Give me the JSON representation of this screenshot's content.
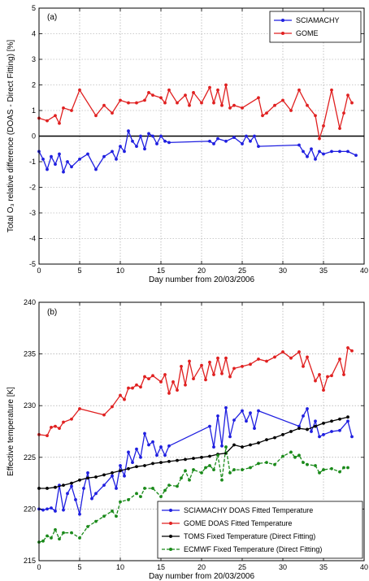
{
  "chart_data": [
    {
      "type": "line",
      "panel_label": "(a)",
      "xlabel": "Day number from 20/03/2006",
      "ylabel": "Total O₃ relative difference (DOAS - Direct Fitting) [%]",
      "xlim": [
        0,
        40
      ],
      "ylim": [
        -5,
        5
      ],
      "xticks": [
        0,
        5,
        10,
        15,
        20,
        25,
        30,
        35,
        40
      ],
      "yticks": [
        -5,
        -4,
        -3,
        -2,
        -1,
        0,
        1,
        2,
        3,
        4,
        5
      ],
      "grid": true,
      "zero_line": true,
      "legend_position": "top-right",
      "series": [
        {
          "name": "SCIAMACHY",
          "color": "#1f1fe0",
          "x": [
            0,
            0.5,
            1,
            1.5,
            2,
            2.5,
            3,
            3.5,
            4,
            5,
            6,
            7,
            8,
            9,
            9.5,
            10,
            10.5,
            11,
            11.5,
            12,
            12.5,
            13,
            13.5,
            14,
            14.5,
            15,
            15.5,
            16,
            21,
            21.5,
            22,
            23,
            24,
            25,
            25.5,
            26,
            26.5,
            27,
            32,
            32.5,
            33,
            33.5,
            34,
            34.5,
            35,
            36,
            37,
            38,
            39
          ],
          "y": [
            -0.6,
            -0.9,
            -1.3,
            -0.8,
            -1.1,
            -0.7,
            -1.4,
            -1.0,
            -1.2,
            -0.9,
            -0.7,
            -1.3,
            -0.8,
            -0.6,
            -0.9,
            -0.4,
            -0.6,
            0.2,
            -0.2,
            -0.4,
            0.0,
            -0.5,
            0.1,
            0.0,
            -0.3,
            0.0,
            -0.2,
            -0.25,
            -0.2,
            -0.3,
            -0.1,
            -0.2,
            -0.05,
            -0.3,
            0.0,
            -0.2,
            0.0,
            -0.4,
            -0.35,
            -0.6,
            -0.8,
            -0.5,
            -0.9,
            -0.6,
            -0.7,
            -0.6,
            -0.6,
            -0.6,
            -0.75
          ]
        },
        {
          "name": "GOME",
          "color": "#e02020",
          "x": [
            0,
            1,
            2,
            2.5,
            3,
            4,
            5,
            7,
            8,
            9,
            10,
            11,
            12,
            13,
            13.5,
            14,
            15,
            15.5,
            16,
            17,
            18,
            18.5,
            19,
            20,
            21,
            21.5,
            22,
            22.5,
            23,
            23.5,
            24,
            25,
            27,
            27.5,
            28,
            29,
            30,
            31,
            32,
            33,
            34,
            34.5,
            35,
            36,
            37,
            37.5,
            38,
            38.5
          ],
          "y": [
            0.7,
            0.6,
            0.8,
            0.5,
            1.1,
            1.0,
            1.8,
            0.8,
            1.2,
            0.9,
            1.4,
            1.3,
            1.3,
            1.4,
            1.7,
            1.6,
            1.5,
            1.3,
            1.8,
            1.3,
            1.6,
            1.2,
            1.7,
            1.3,
            1.9,
            1.3,
            1.8,
            1.2,
            2.0,
            1.1,
            1.2,
            1.1,
            1.5,
            0.8,
            0.9,
            1.2,
            1.4,
            1.0,
            1.8,
            1.2,
            0.8,
            -0.1,
            0.4,
            1.8,
            0.3,
            0.9,
            1.6,
            1.3
          ]
        }
      ]
    },
    {
      "type": "line",
      "panel_label": "(b)",
      "xlabel": "Day number from 20/03/2006",
      "ylabel": "Effective temperature [K]",
      "xlim": [
        0,
        40
      ],
      "ylim": [
        215,
        240
      ],
      "xticks": [
        0,
        5,
        10,
        15,
        20,
        25,
        30,
        35,
        40
      ],
      "yticks": [
        215,
        220,
        225,
        230,
        235,
        240
      ],
      "grid": true,
      "legend_position": "bottom-right",
      "series": [
        {
          "name": "SCIAMACHY DOAS Fitted Temperature",
          "color": "#1f1fe0",
          "dashed": false,
          "x": [
            0,
            0.5,
            1,
            1.5,
            2,
            2.5,
            3,
            3.5,
            4,
            4.5,
            5,
            5.5,
            6,
            6.5,
            7,
            8,
            9,
            9.5,
            10,
            10.5,
            11,
            11.5,
            12,
            12.5,
            13,
            13.5,
            14,
            14.5,
            15,
            15.5,
            16,
            21,
            21.5,
            22,
            22.5,
            23,
            23.5,
            24,
            25,
            25.5,
            26,
            26.5,
            27,
            32,
            32.5,
            33,
            33.5,
            34,
            34.5,
            35,
            36,
            37,
            38,
            38.5
          ],
          "y": [
            220.0,
            219.9,
            220.0,
            220.1,
            219.8,
            222.3,
            219.9,
            221.5,
            222.2,
            220.9,
            219.5,
            222.0,
            223.5,
            221.0,
            221.5,
            222.3,
            223.2,
            222.0,
            224.2,
            223.2,
            225.5,
            224.5,
            225.8,
            225.0,
            227.3,
            226.2,
            226.5,
            225.2,
            226.0,
            225.2,
            226.1,
            228.0,
            226.0,
            229.0,
            226.1,
            229.8,
            227.0,
            228.6,
            229.5,
            228.5,
            229.3,
            227.8,
            229.5,
            228.0,
            229.0,
            229.7,
            227.5,
            228.5,
            227.0,
            227.2,
            227.5,
            227.6,
            228.5,
            227.0
          ]
        },
        {
          "name": "GOME DOAS Fitted Temperature",
          "color": "#e02020",
          "dashed": false,
          "x": [
            0,
            1,
            1.5,
            2,
            2.5,
            3,
            4,
            5,
            8,
            9,
            10,
            10.5,
            11,
            11.5,
            12,
            12.5,
            13,
            13.5,
            14,
            15,
            15.5,
            16,
            16.5,
            17,
            17.5,
            18,
            18.5,
            19,
            20,
            20.5,
            21,
            21.5,
            22,
            22.5,
            23,
            23.5,
            24,
            25,
            26,
            27,
            28,
            29,
            30,
            31,
            32,
            32.5,
            33,
            34,
            34.5,
            35,
            35.5,
            36,
            37,
            37.5,
            38,
            38.5
          ],
          "y": [
            227.2,
            227.1,
            227.9,
            228.0,
            227.8,
            228.4,
            228.7,
            229.7,
            229.1,
            229.9,
            231.0,
            230.6,
            231.7,
            231.7,
            232.0,
            231.8,
            232.8,
            232.6,
            232.9,
            232.3,
            233.0,
            231.2,
            232.3,
            231.5,
            233.8,
            232.0,
            234.3,
            232.6,
            233.9,
            232.5,
            234.2,
            233.0,
            234.6,
            233.1,
            234.6,
            232.8,
            233.6,
            233.8,
            234.0,
            234.5,
            234.3,
            234.7,
            235.2,
            234.6,
            235.2,
            233.8,
            234.7,
            232.4,
            233.0,
            231.5,
            232.8,
            232.9,
            234.5,
            233.0,
            235.6,
            235.3
          ]
        },
        {
          "name": "TOMS Fixed Temperature (Direct Fitting)",
          "color": "#000000",
          "dashed": false,
          "x": [
            0,
            1,
            2,
            3,
            4,
            5,
            6,
            7,
            8,
            9,
            10,
            11,
            12,
            13,
            14,
            15,
            16,
            17,
            18,
            19,
            20,
            21,
            22,
            23,
            24,
            25,
            26,
            27,
            28,
            29,
            30,
            31,
            32,
            33,
            34,
            35,
            36,
            37,
            38
          ],
          "y": [
            222.0,
            222.0,
            222.1,
            222.3,
            222.5,
            222.8,
            223.0,
            223.1,
            223.3,
            223.5,
            223.7,
            223.9,
            224.1,
            224.2,
            224.4,
            224.5,
            224.6,
            224.7,
            224.8,
            224.9,
            225.0,
            225.1,
            225.3,
            225.4,
            226.2,
            226.0,
            226.2,
            226.4,
            226.7,
            226.9,
            227.2,
            227.5,
            227.8,
            227.7,
            228.0,
            228.3,
            228.5,
            228.7,
            228.9
          ]
        },
        {
          "name": "ECMWF Fixed Temperature (Direct Fitting)",
          "color": "#1a8a1a",
          "dashed": true,
          "x": [
            0,
            0.5,
            1,
            1.5,
            2,
            2.5,
            3,
            4,
            5,
            6,
            7,
            8,
            9,
            9.5,
            10,
            11,
            12,
            12.5,
            13,
            14,
            15,
            15.5,
            16,
            17,
            17.5,
            18,
            18.5,
            19,
            20,
            20.5,
            21,
            21.5,
            22,
            22.5,
            23,
            23.5,
            24,
            25,
            26,
            27,
            28,
            29,
            30,
            31,
            31.5,
            32,
            32.5,
            33,
            34,
            34.5,
            35,
            36,
            37,
            37.5,
            38
          ],
          "y": [
            216.8,
            216.9,
            217.4,
            217.2,
            218.0,
            217.1,
            217.7,
            217.7,
            217.2,
            218.3,
            218.8,
            219.3,
            219.8,
            219.3,
            220.7,
            220.9,
            221.5,
            221.2,
            222.0,
            222.0,
            221.2,
            221.8,
            222.3,
            222.2,
            223.0,
            223.7,
            222.8,
            223.8,
            223.5,
            224.0,
            224.2,
            223.8,
            225.2,
            222.8,
            226.0,
            223.5,
            223.8,
            223.8,
            224.0,
            224.4,
            224.5,
            224.3,
            225.1,
            225.5,
            225.0,
            225.2,
            224.5,
            224.3,
            224.2,
            223.5,
            223.8,
            223.9,
            223.6,
            224.0,
            224.0
          ]
        }
      ]
    }
  ]
}
